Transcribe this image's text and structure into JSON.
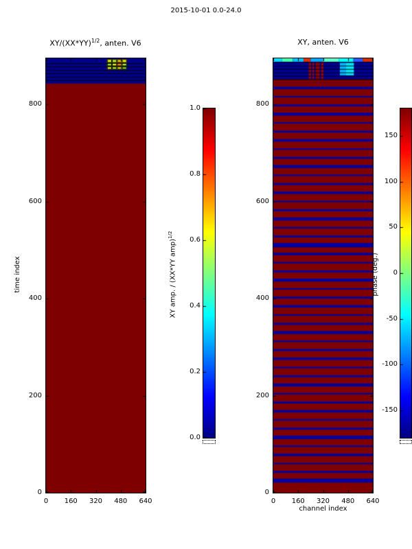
{
  "figure": {
    "title": "2015-10-01 0.0-24.0",
    "bg": "#ffffff"
  },
  "chart_data": {
    "type": "heatmap",
    "title": "2015-10-01 0.0-24.0",
    "colormap": "jet",
    "panels": [
      {
        "title_pre": "XY/(XX*YY)",
        "title_sup": "1/2",
        "title_post": ", anten. V6",
        "xlabel": "",
        "ylabel": "time index",
        "xlim": [
          0,
          640
        ],
        "ylim": [
          0,
          895
        ],
        "xticks": [
          {
            "v": 0,
            "label": "0"
          },
          {
            "v": 160,
            "label": "160"
          },
          {
            "v": 320,
            "label": "320"
          },
          {
            "v": 480,
            "label": "480"
          },
          {
            "v": 640,
            "label": "640"
          }
        ],
        "yticks": [
          {
            "v": 0,
            "label": "0"
          },
          {
            "v": 200,
            "label": "200"
          },
          {
            "v": 400,
            "label": "400"
          },
          {
            "v": 600,
            "label": "600"
          },
          {
            "v": 800,
            "label": "800"
          }
        ],
        "base_color": "#7f0000",
        "stripe_color": "#0000a0",
        "stripes": [],
        "band": {
          "t0": 843,
          "t1": 895,
          "color": "#000088",
          "row_lines": [
            850,
            857,
            864,
            871,
            878,
            885
          ],
          "segments": [],
          "cells": {
            "rows": [
              [
                886,
                893
              ],
              [
                879,
                886
              ],
              [
                872,
                879
              ]
            ],
            "cols": [
              [
                392,
                424
              ],
              [
                424,
                456
              ],
              [
                456,
                488
              ],
              [
                488,
                520
              ]
            ],
            "colors": [
              [
                "#ffff00",
                "#c8ff20",
                "#ffc800",
                "#ffff00"
              ],
              [
                "#a0ff20",
                "#ffff00",
                "#ff9800",
                "#c0ff30"
              ],
              [
                "#ffff00",
                "#b0ff28",
                "#ffe000",
                "#88e818"
              ]
            ]
          }
        }
      },
      {
        "title_pre": "XY, anten. V6",
        "title_sup": "",
        "title_post": "",
        "xlabel": "channel index",
        "ylabel": "",
        "xlim": [
          0,
          640
        ],
        "ylim": [
          0,
          895
        ],
        "xticks": [
          {
            "v": 0,
            "label": "0"
          },
          {
            "v": 160,
            "label": "160"
          },
          {
            "v": 320,
            "label": "320"
          },
          {
            "v": 480,
            "label": "480"
          },
          {
            "v": 640,
            "label": "640"
          }
        ],
        "yticks": [
          {
            "v": 0,
            "label": "0"
          },
          {
            "v": 200,
            "label": "200"
          },
          {
            "v": 400,
            "label": "400"
          },
          {
            "v": 600,
            "label": "600"
          },
          {
            "v": 800,
            "label": "800"
          }
        ],
        "base_color": "#7f0000",
        "stripe_color": "#0000a0",
        "stripes": [
          [
            25,
            8
          ],
          [
            43,
            4
          ],
          [
            60,
            3
          ],
          [
            78,
            5
          ],
          [
            96,
            3
          ],
          [
            114,
            7
          ],
          [
            132,
            4
          ],
          [
            150,
            3
          ],
          [
            168,
            5
          ],
          [
            186,
            4
          ],
          [
            204,
            3
          ],
          [
            222,
            6
          ],
          [
            240,
            4
          ],
          [
            258,
            3
          ],
          [
            276,
            5
          ],
          [
            294,
            4
          ],
          [
            312,
            3
          ],
          [
            330,
            6
          ],
          [
            348,
            4
          ],
          [
            366,
            3
          ],
          [
            384,
            5
          ],
          [
            402,
            4
          ],
          [
            420,
            3
          ],
          [
            438,
            6
          ],
          [
            456,
            4
          ],
          [
            474,
            3
          ],
          [
            492,
            5
          ],
          [
            510,
            9
          ],
          [
            528,
            4
          ],
          [
            546,
            3
          ],
          [
            564,
            6
          ],
          [
            582,
            4
          ],
          [
            600,
            3
          ],
          [
            618,
            5
          ],
          [
            636,
            4
          ],
          [
            654,
            3
          ],
          [
            672,
            6
          ],
          [
            690,
            4
          ],
          [
            708,
            3
          ],
          [
            726,
            5
          ],
          [
            744,
            4
          ],
          [
            762,
            3
          ],
          [
            780,
            6
          ],
          [
            798,
            4
          ],
          [
            816,
            3
          ],
          [
            834,
            5
          ]
        ],
        "band": {
          "t0": 845,
          "t1": 895,
          "color": "#000098",
          "row_lines": [
            852,
            859,
            866,
            873,
            880,
            887
          ],
          "segments": [
            {
              "t0": 888,
              "t1": 895,
              "c0": 0,
              "c1": 55,
              "color": "#00e0ff"
            },
            {
              "t0": 888,
              "t1": 895,
              "c0": 55,
              "c1": 125,
              "color": "#40ffb0"
            },
            {
              "t0": 888,
              "t1": 895,
              "c0": 125,
              "c1": 195,
              "color": "#00c0ff"
            },
            {
              "t0": 888,
              "t1": 895,
              "c0": 195,
              "c1": 240,
              "color": "#e03000"
            },
            {
              "t0": 888,
              "t1": 895,
              "c0": 240,
              "c1": 320,
              "color": "#00a8ff"
            },
            {
              "t0": 888,
              "t1": 895,
              "c0": 320,
              "c1": 420,
              "color": "#60ffc8"
            },
            {
              "t0": 888,
              "t1": 895,
              "c0": 420,
              "c1": 515,
              "color": "#00ffff"
            },
            {
              "t0": 888,
              "t1": 895,
              "c0": 515,
              "c1": 575,
              "color": "#2858ff"
            },
            {
              "t0": 888,
              "t1": 895,
              "c0": 575,
              "c1": 640,
              "color": "#d03000"
            },
            {
              "t0": 853,
              "t1": 888,
              "c0": 228,
              "c1": 243,
              "color": "#980000"
            },
            {
              "t0": 853,
              "t1": 888,
              "c0": 252,
              "c1": 262,
              "color": "#a80000"
            },
            {
              "t0": 853,
              "t1": 888,
              "c0": 272,
              "c1": 298,
              "color": "#900000"
            },
            {
              "t0": 853,
              "t1": 888,
              "c0": 308,
              "c1": 322,
              "color": "#a00000"
            },
            {
              "t0": 860,
              "t1": 887,
              "c0": 428,
              "c1": 468,
              "color": "#00b8ff"
            },
            {
              "t0": 860,
              "t1": 887,
              "c0": 468,
              "c1": 518,
              "color": "#00e8ff"
            },
            {
              "t0": 845,
              "t1": 852,
              "c0": 0,
              "c1": 640,
              "color": "#7f0000"
            }
          ],
          "cells": null
        }
      }
    ],
    "colorbars": [
      {
        "label_pre": "XY amp. / (XX*YY amp)",
        "label_sup": "1/2",
        "vmin": 0,
        "vmax": 1,
        "ticks": [
          {
            "v": 0.0,
            "label": "0.0"
          },
          {
            "v": 0.2,
            "label": "0.2"
          },
          {
            "v": 0.4,
            "label": "0.4"
          },
          {
            "v": 0.6,
            "label": "0.6"
          },
          {
            "v": 0.8,
            "label": "0.8"
          },
          {
            "v": 1.0,
            "label": "1.0"
          }
        ]
      },
      {
        "label_pre": "phase (deg.)",
        "label_sup": "",
        "vmin": -180,
        "vmax": 180,
        "ticks": [
          {
            "v": 150,
            "label": "150"
          },
          {
            "v": 100,
            "label": "100"
          },
          {
            "v": 50,
            "label": "50"
          },
          {
            "v": 0,
            "label": "0"
          },
          {
            "v": -50,
            "label": "-50"
          },
          {
            "v": -100,
            "label": "-100"
          },
          {
            "v": -150,
            "label": "-150"
          }
        ]
      }
    ]
  }
}
